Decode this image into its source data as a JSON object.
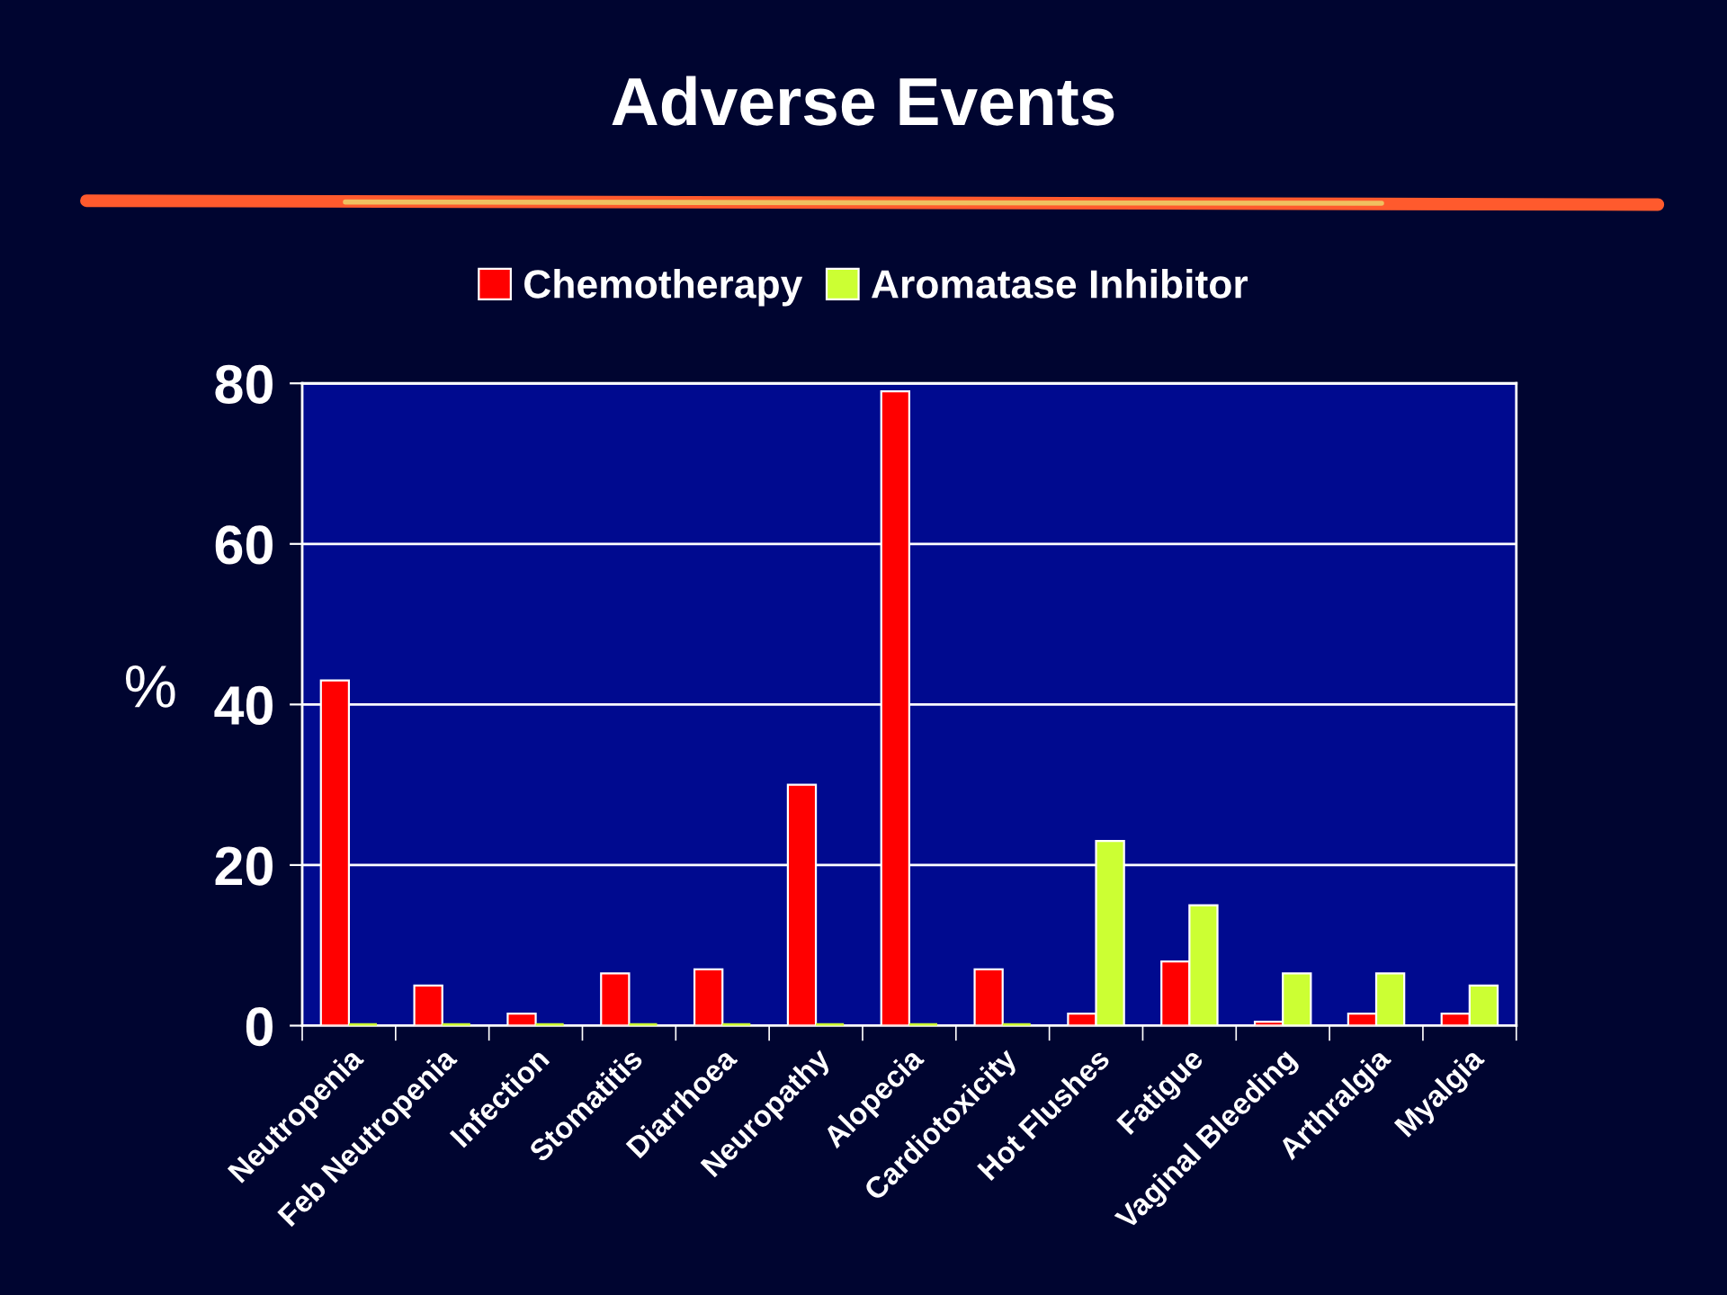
{
  "chart_data": {
    "type": "bar",
    "title": "Adverse Events",
    "ylabel": "%",
    "categories": [
      "Neutropenia",
      "Feb Neutropenia",
      "Infection",
      "Stomatitis",
      "Diarrhoea",
      "Neuropathy",
      "Alopecia",
      "Cardiotoxicity",
      "Hot Flushes",
      "Fatigue",
      "Vaginal Bleeding",
      "Arthralgia",
      "Myalgia"
    ],
    "series": [
      {
        "name": "Chemotherapy",
        "color": "#ff0000",
        "values": [
          43,
          5,
          1.5,
          6.5,
          7,
          30,
          79,
          7,
          1.5,
          8,
          0.5,
          1.5,
          1.5
        ]
      },
      {
        "name": "Aromatase Inhibitor",
        "color": "#ccff33",
        "values": [
          0,
          0,
          0,
          0,
          0,
          0,
          0,
          0,
          23,
          15,
          6.5,
          6.5,
          5
        ]
      }
    ],
    "ylim": [
      0,
      80
    ],
    "yticks": [
      0,
      20,
      40,
      60,
      80
    ],
    "grid": "y",
    "legend": "top"
  }
}
